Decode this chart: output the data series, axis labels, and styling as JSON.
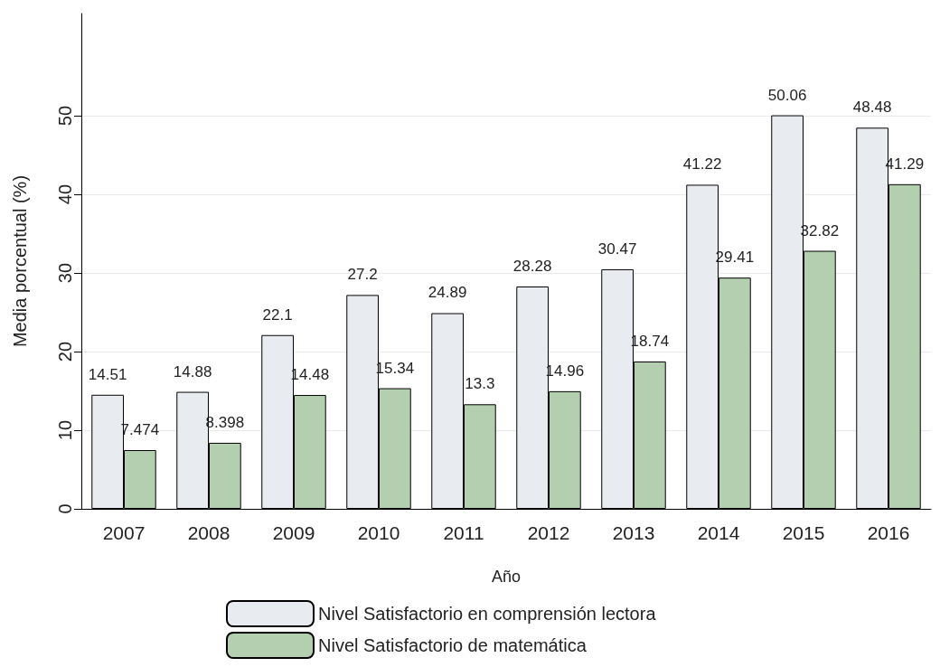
{
  "chart_data": {
    "type": "bar",
    "xlabel": "Año",
    "ylabel": "Media porcentual (%)",
    "categories": [
      "2007",
      "2008",
      "2009",
      "2010",
      "2011",
      "2012",
      "2013",
      "2014",
      "2015",
      "2016"
    ],
    "series": [
      {
        "name": "Nivel Satisfactorio en comprensión lectora",
        "color": "#e8ecf1",
        "values": [
          14.51,
          14.88,
          22.1,
          27.2,
          24.89,
          28.28,
          30.47,
          41.22,
          50.06,
          48.48
        ]
      },
      {
        "name": "Nivel Satisfactorio de matemática",
        "color": "#b4cfb0",
        "values": [
          7.474,
          8.398,
          14.48,
          15.34,
          13.3,
          14.96,
          18.74,
          29.41,
          32.82,
          41.29
        ]
      }
    ],
    "ylim": [
      0,
      63
    ],
    "yticks": [
      0,
      10,
      20,
      30,
      40,
      50
    ],
    "grid": "y",
    "legend": "bottom",
    "data_labels": true
  }
}
